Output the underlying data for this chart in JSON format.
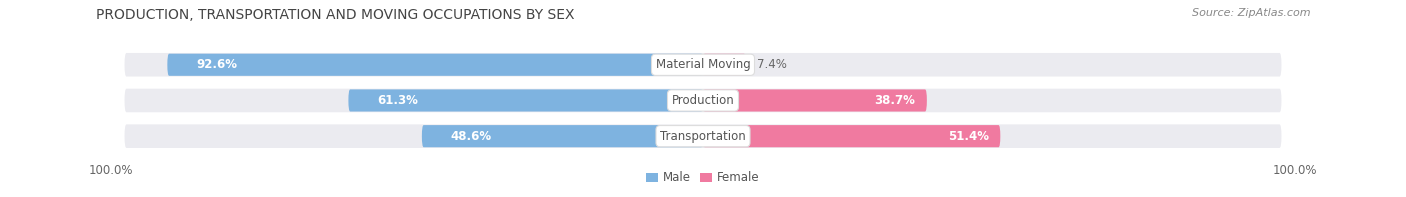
{
  "title": "PRODUCTION, TRANSPORTATION AND MOVING OCCUPATIONS BY SEX",
  "source_text": "Source: ZipAtlas.com",
  "categories": [
    "Material Moving",
    "Production",
    "Transportation"
  ],
  "male_values": [
    92.6,
    61.3,
    48.6
  ],
  "female_values": [
    7.4,
    38.7,
    51.4
  ],
  "male_color": "#7eb3e0",
  "female_color": "#f07aa0",
  "male_label": "Male",
  "female_label": "Female",
  "bg_color": "#ffffff",
  "row_bg_color": "#ebebf0",
  "label_bg_color": "#ffffff",
  "title_fontsize": 10,
  "source_fontsize": 8,
  "pct_fontsize": 8.5,
  "cat_fontsize": 8.5,
  "tick_fontsize": 8.5,
  "figsize": [
    14.06,
    1.97
  ],
  "dpi": 100,
  "title_color": "#444444",
  "source_color": "#888888",
  "pct_color_inside": "#ffffff",
  "pct_color_outside": "#666666",
  "cat_label_color": "#555555"
}
